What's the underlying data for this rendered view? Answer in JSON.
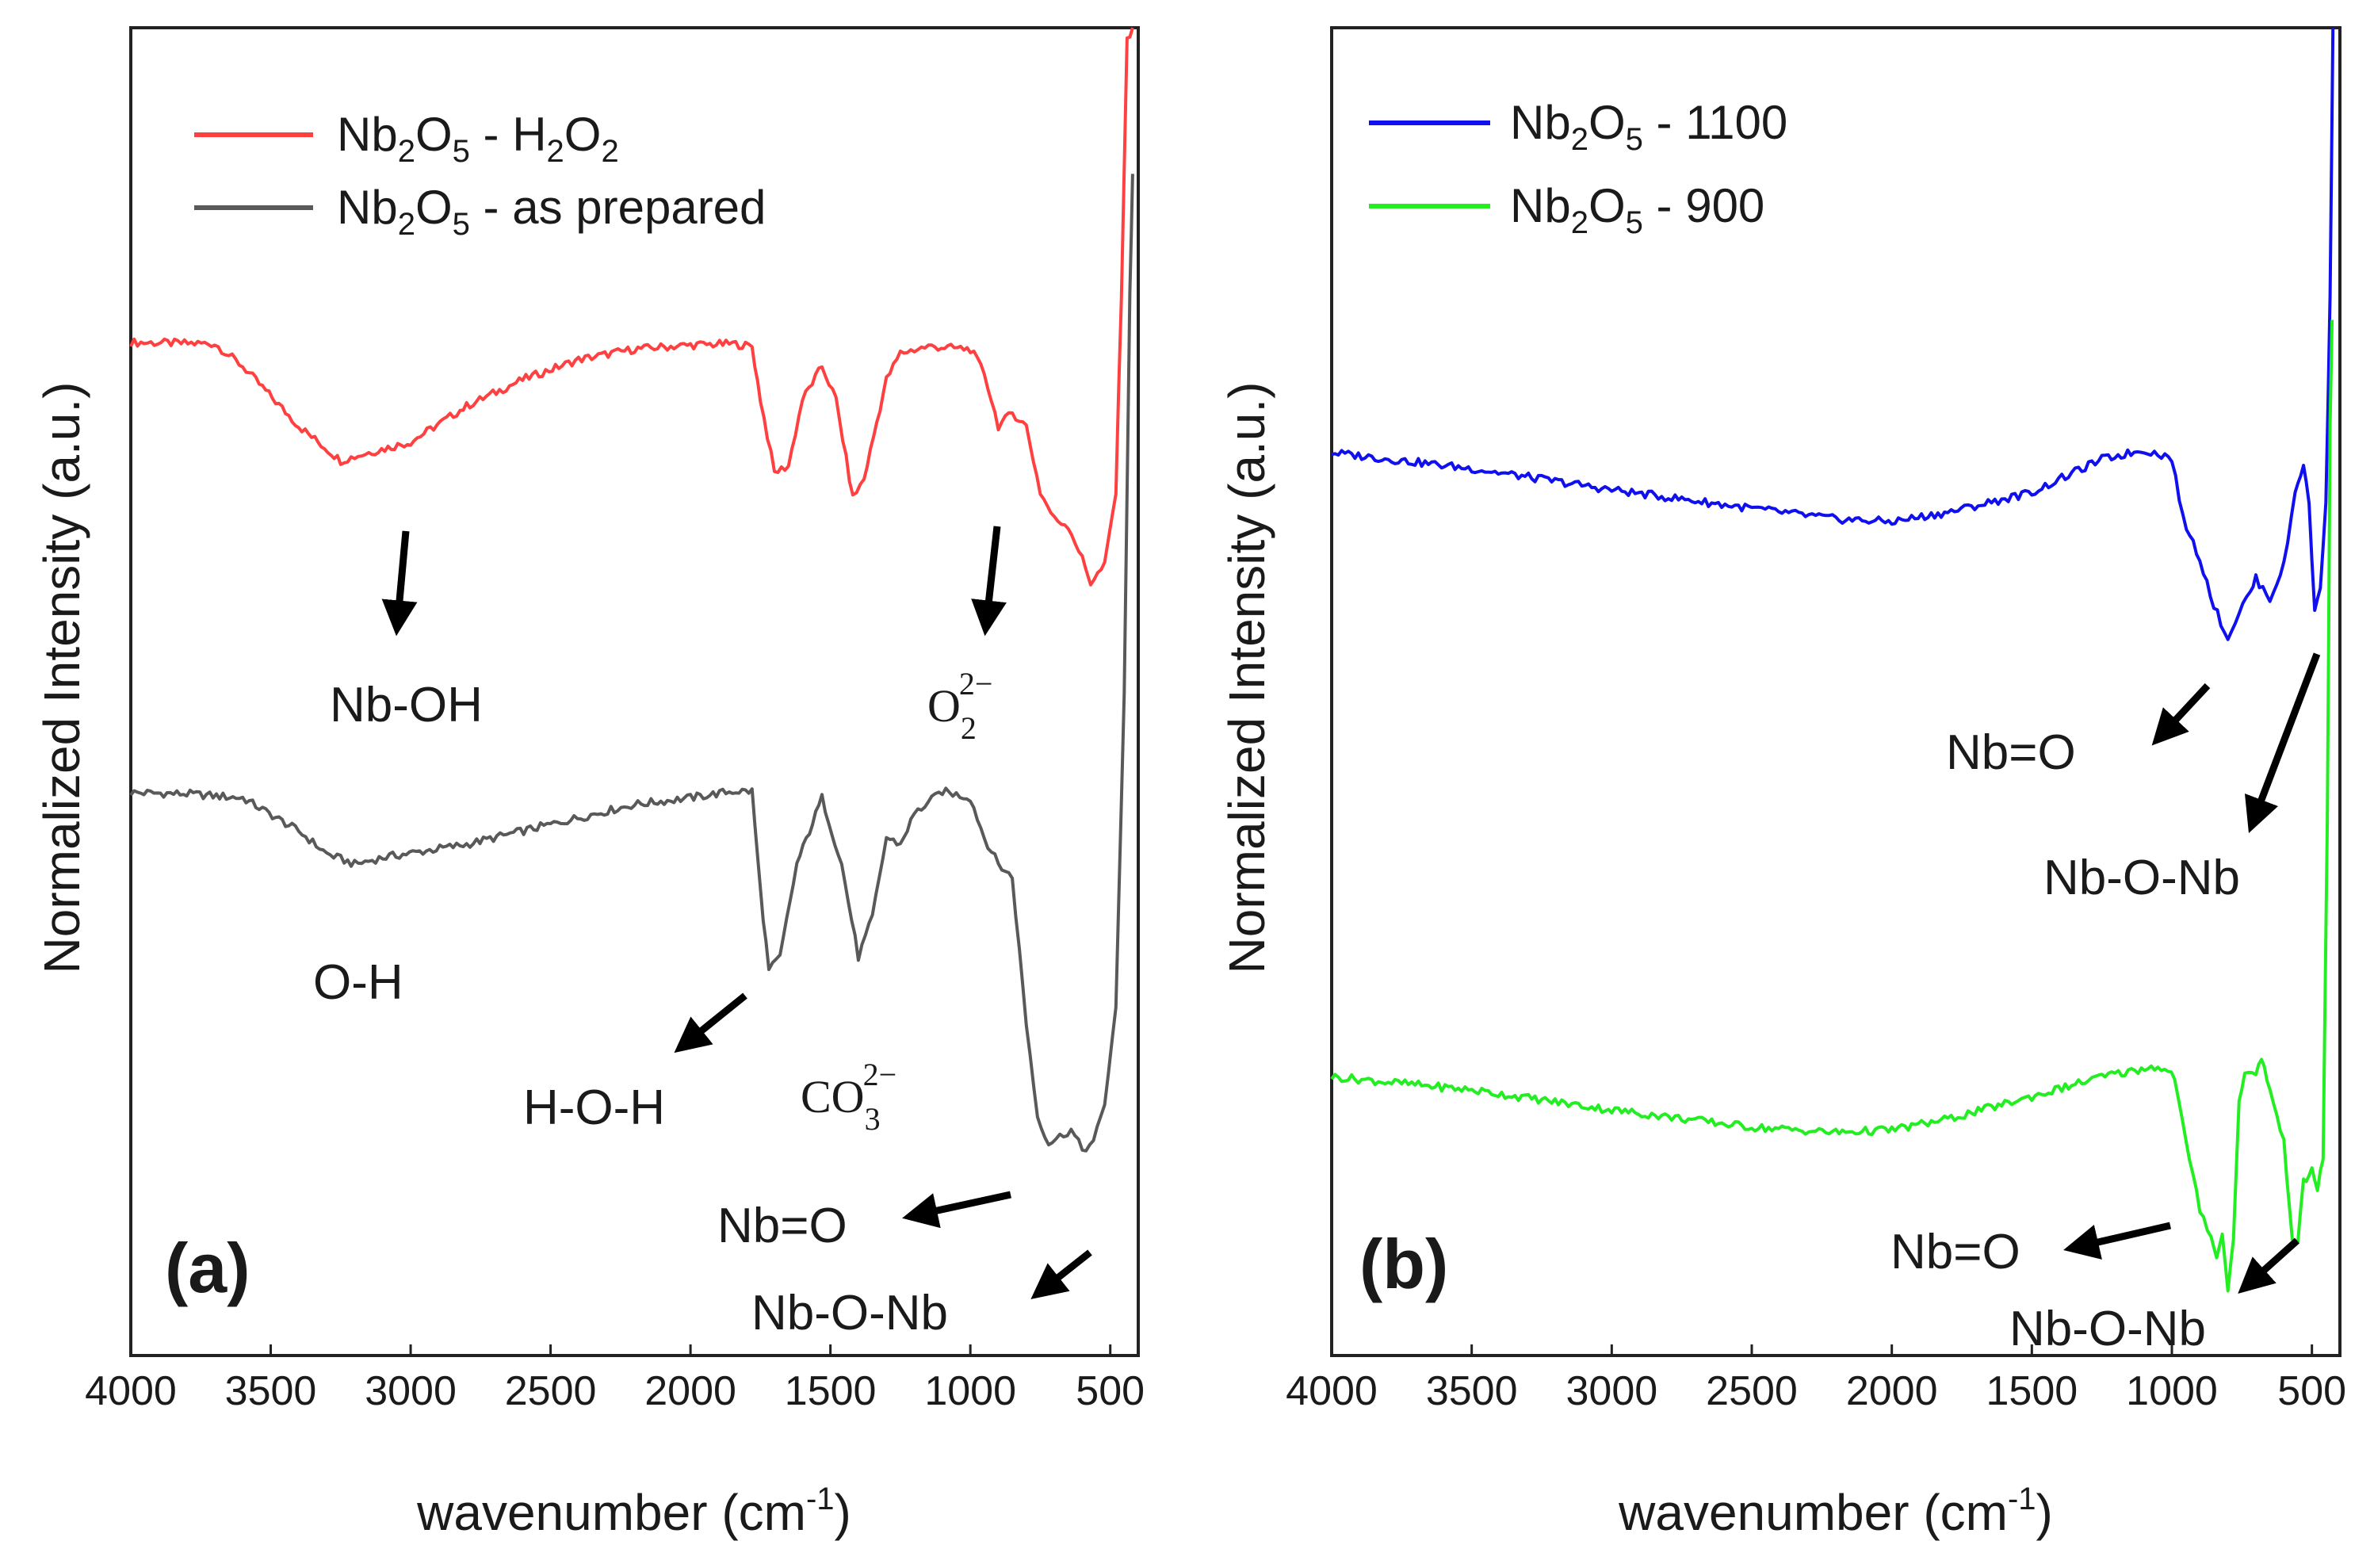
{
  "chart_data": [
    {
      "panel": "(a)",
      "type": "line",
      "xlabel": "wavenumber (cm",
      "xlabel_sup": "-1",
      "xlabel_end": ")",
      "ylabel": "Normalized Intensity (a.u.)",
      "xlim": [
        4000,
        400
      ],
      "ylim": [
        0,
        1
      ],
      "xticks": [
        "4000",
        "3500",
        "3000",
        "2500",
        "2000",
        "1500",
        "1000",
        "500"
      ],
      "legend": [
        {
          "parts": [
            [
              "Nb",
              ""
            ],
            [
              "2",
              "sub"
            ],
            [
              "O",
              ""
            ],
            [
              "5",
              "sub"
            ],
            [
              " - H",
              ""
            ],
            [
              "2",
              "sub"
            ],
            [
              "O",
              ""
            ],
            [
              "2",
              "sub"
            ]
          ],
          "color": "#ff4040"
        },
        {
          "parts": [
            [
              "Nb",
              ""
            ],
            [
              "2",
              "sub"
            ],
            [
              "O",
              ""
            ],
            [
              "5",
              "sub"
            ],
            [
              " - as prepared",
              ""
            ]
          ],
          "color": "#595959"
        }
      ],
      "series": [
        {
          "name": "Nb2O5 - H2O2",
          "color": "#ff4040",
          "points": [
            [
              4000,
              0.763
            ],
            [
              3700,
              0.762
            ],
            [
              3600,
              0.745
            ],
            [
              3400,
              0.7
            ],
            [
              3250,
              0.674
            ],
            [
              3150,
              0.68
            ],
            [
              3000,
              0.688
            ],
            [
              2800,
              0.715
            ],
            [
              2600,
              0.735
            ],
            [
              2400,
              0.75
            ],
            [
              2200,
              0.758
            ],
            [
              2000,
              0.761
            ],
            [
              1850,
              0.762
            ],
            [
              1780,
              0.76
            ],
            [
              1750,
              0.72
            ],
            [
              1700,
              0.665
            ],
            [
              1650,
              0.67
            ],
            [
              1600,
              0.72
            ],
            [
              1530,
              0.745
            ],
            [
              1480,
              0.72
            ],
            [
              1420,
              0.646
            ],
            [
              1380,
              0.66
            ],
            [
              1300,
              0.735
            ],
            [
              1250,
              0.755
            ],
            [
              1150,
              0.76
            ],
            [
              1000,
              0.758
            ],
            [
              950,
              0.74
            ],
            [
              900,
              0.7
            ],
            [
              850,
              0.71
            ],
            [
              800,
              0.7
            ],
            [
              750,
              0.65
            ],
            [
              700,
              0.63
            ],
            [
              650,
              0.625
            ],
            [
              600,
              0.6
            ],
            [
              570,
              0.582
            ],
            [
              520,
              0.595
            ],
            [
              480,
              0.65
            ],
            [
              460,
              0.8
            ],
            [
              440,
              0.99
            ],
            [
              420,
              1.0
            ]
          ]
        },
        {
          "name": "Nb2O5 - as prepared",
          "color": "#595959",
          "points": [
            [
              4000,
              0.424
            ],
            [
              3800,
              0.423
            ],
            [
              3600,
              0.42
            ],
            [
              3400,
              0.395
            ],
            [
              3300,
              0.378
            ],
            [
              3200,
              0.37
            ],
            [
              3100,
              0.375
            ],
            [
              2800,
              0.385
            ],
            [
              2500,
              0.4
            ],
            [
              2200,
              0.415
            ],
            [
              2000,
              0.42
            ],
            [
              1850,
              0.425
            ],
            [
              1780,
              0.425
            ],
            [
              1750,
              0.35
            ],
            [
              1720,
              0.29
            ],
            [
              1680,
              0.3
            ],
            [
              1620,
              0.37
            ],
            [
              1530,
              0.42
            ],
            [
              1460,
              0.37
            ],
            [
              1400,
              0.3
            ],
            [
              1350,
              0.33
            ],
            [
              1300,
              0.39
            ],
            [
              1250,
              0.385
            ],
            [
              1200,
              0.408
            ],
            [
              1100,
              0.425
            ],
            [
              1000,
              0.42
            ],
            [
              950,
              0.39
            ],
            [
              900,
              0.37
            ],
            [
              850,
              0.36
            ],
            [
              800,
              0.25
            ],
            [
              760,
              0.18
            ],
            [
              720,
              0.16
            ],
            [
              680,
              0.165
            ],
            [
              640,
              0.17
            ],
            [
              600,
              0.155
            ],
            [
              560,
              0.16
            ],
            [
              520,
              0.19
            ],
            [
              480,
              0.26
            ],
            [
              450,
              0.5
            ],
            [
              430,
              0.8
            ],
            [
              420,
              0.89
            ]
          ]
        }
      ],
      "annotations": [
        "Nb-OH",
        "O-H",
        "H-O-H",
        "Nb=O",
        "Nb-O-Nb"
      ],
      "ion_o2": {
        "base": "O",
        "sub": "2",
        "sup": "2−"
      },
      "ion_co3": {
        "base": "CO",
        "sub": "3",
        "sup": "2−"
      }
    },
    {
      "panel": "(b)",
      "type": "line",
      "xlabel": "wavenumber (cm",
      "xlabel_sup": "-1",
      "xlabel_end": ")",
      "ylabel": "Normalized Intensity (a.u.)",
      "xlim": [
        4000,
        400
      ],
      "ylim": [
        0,
        1
      ],
      "xticks": [
        "4000",
        "3500",
        "3000",
        "2500",
        "2000",
        "1500",
        "1000",
        "500"
      ],
      "legend": [
        {
          "parts": [
            [
              "Nb",
              ""
            ],
            [
              "2",
              "sub"
            ],
            [
              "O",
              ""
            ],
            [
              "5",
              "sub"
            ],
            [
              " - 1100",
              ""
            ]
          ],
          "color": "#1010ee"
        },
        {
          "parts": [
            [
              "Nb",
              ""
            ],
            [
              "2",
              "sub"
            ],
            [
              "O",
              ""
            ],
            [
              "5",
              "sub"
            ],
            [
              " - 900",
              ""
            ]
          ],
          "color": "#22ee22"
        }
      ],
      "series": [
        {
          "name": "Nb2O5 - 1100",
          "color": "#1010ee",
          "points": [
            [
              4000,
              0.68
            ],
            [
              3500,
              0.668
            ],
            [
              3000,
              0.652
            ],
            [
              2500,
              0.638
            ],
            [
              2200,
              0.63
            ],
            [
              2000,
              0.628
            ],
            [
              1800,
              0.635
            ],
            [
              1500,
              0.65
            ],
            [
              1250,
              0.675
            ],
            [
              1100,
              0.682
            ],
            [
              1000,
              0.676
            ],
            [
              960,
              0.63
            ],
            [
              900,
              0.6
            ],
            [
              850,
              0.565
            ],
            [
              800,
              0.54
            ],
            [
              760,
              0.56
            ],
            [
              720,
              0.575
            ],
            [
              700,
              0.585
            ],
            [
              650,
              0.57
            ],
            [
              600,
              0.595
            ],
            [
              560,
              0.65
            ],
            [
              530,
              0.672
            ],
            [
              510,
              0.64
            ],
            [
              490,
              0.56
            ],
            [
              470,
              0.58
            ],
            [
              450,
              0.64
            ],
            [
              435,
              0.8
            ],
            [
              425,
              1.0
            ]
          ]
        },
        {
          "name": "Nb2O5 - 900",
          "color": "#22ee22",
          "points": [
            [
              4000,
              0.21
            ],
            [
              3500,
              0.2
            ],
            [
              3000,
              0.185
            ],
            [
              2500,
              0.172
            ],
            [
              2200,
              0.168
            ],
            [
              2000,
              0.17
            ],
            [
              1800,
              0.178
            ],
            [
              1500,
              0.195
            ],
            [
              1250,
              0.21
            ],
            [
              1050,
              0.218
            ],
            [
              990,
              0.21
            ],
            [
              950,
              0.16
            ],
            [
              900,
              0.11
            ],
            [
              860,
              0.09
            ],
            [
              840,
              0.075
            ],
            [
              820,
              0.09
            ],
            [
              800,
              0.05
            ],
            [
              780,
              0.09
            ],
            [
              760,
              0.19
            ],
            [
              740,
              0.215
            ],
            [
              700,
              0.21
            ],
            [
              680,
              0.225
            ],
            [
              650,
              0.2
            ],
            [
              600,
              0.16
            ],
            [
              570,
              0.09
            ],
            [
              550,
              0.085
            ],
            [
              530,
              0.13
            ],
            [
              500,
              0.14
            ],
            [
              480,
              0.125
            ],
            [
              460,
              0.15
            ],
            [
              445,
              0.4
            ],
            [
              435,
              0.7
            ],
            [
              428,
              0.78
            ]
          ]
        }
      ],
      "annotations": [
        "Nb=O",
        "Nb-O-Nb",
        "Nb=O",
        "Nb-O-Nb"
      ]
    }
  ]
}
